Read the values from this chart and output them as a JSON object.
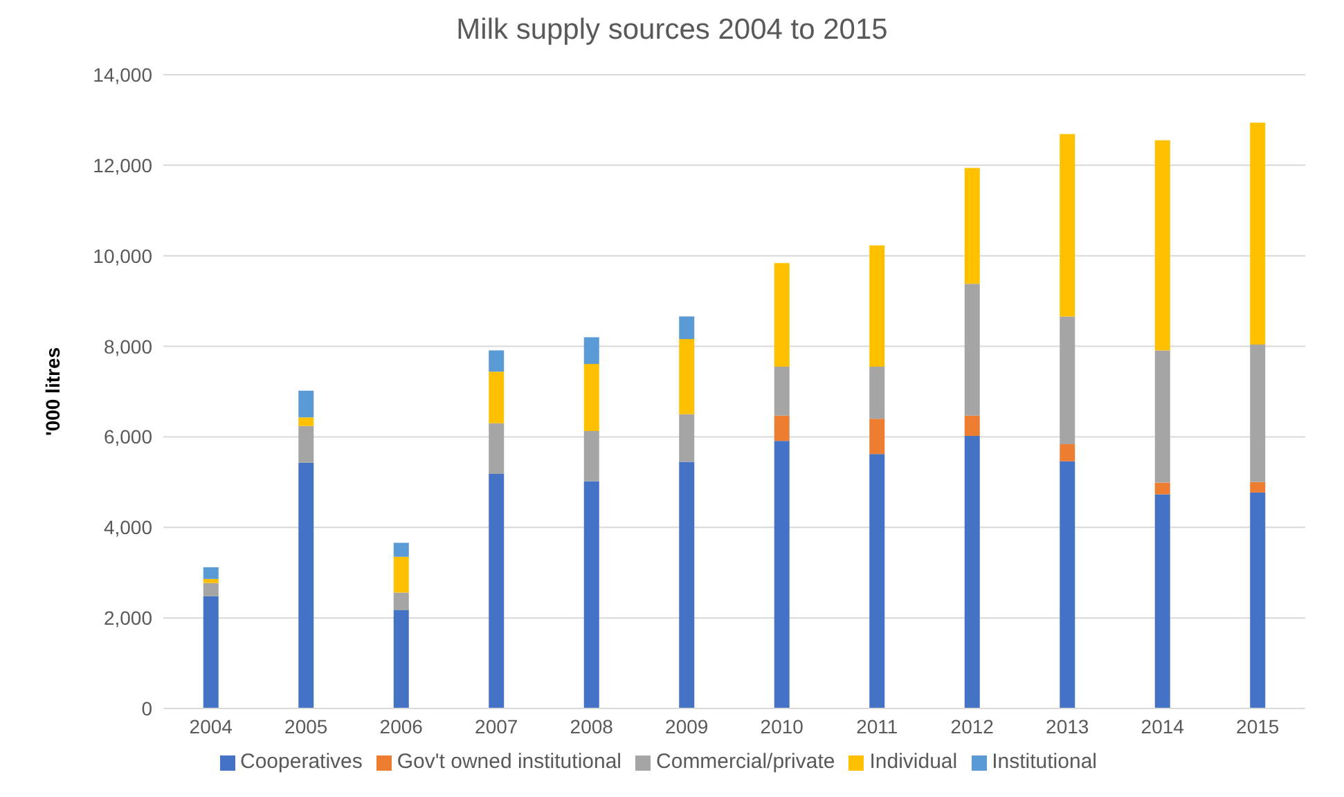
{
  "chart_data": {
    "type": "bar",
    "title": "Milk supply sources 2004 to 2015",
    "ylabel": "'000 litres",
    "categories": [
      "2004",
      "2005",
      "2006",
      "2007",
      "2008",
      "2009",
      "2010",
      "2011",
      "2012",
      "2013",
      "2014",
      "2015"
    ],
    "stacked": true,
    "series": [
      {
        "name": "Cooperatives",
        "color": "#4472c4",
        "values": [
          2480,
          5430,
          2170,
          5180,
          5020,
          5450,
          5910,
          5620,
          6020,
          5460,
          4730,
          4770
        ]
      },
      {
        "name": "Gov't owned institutional",
        "color": "#ed7d31",
        "values": [
          null,
          null,
          null,
          null,
          null,
          null,
          560,
          780,
          450,
          380,
          260,
          230
        ]
      },
      {
        "name": "Commercial/private",
        "color": "#a5a5a5",
        "values": [
          290,
          810,
          390,
          1120,
          1110,
          1050,
          1080,
          1150,
          2910,
          2820,
          2920,
          3040
        ]
      },
      {
        "name": "Individual",
        "color": "#ffc000",
        "values": [
          90,
          190,
          790,
          1140,
          1480,
          1660,
          2290,
          2680,
          2560,
          4030,
          4640,
          4900
        ]
      },
      {
        "name": "Institutional",
        "color": "#5b9bd5",
        "values": [
          260,
          590,
          310,
          470,
          590,
          500,
          null,
          null,
          null,
          null,
          null,
          null
        ]
      }
    ],
    "ylim": [
      0,
      14000
    ],
    "yticks": [
      {
        "value": 0,
        "label": "0"
      },
      {
        "value": 2000,
        "label": "2,000"
      },
      {
        "value": 4000,
        "label": "4,000"
      },
      {
        "value": 6000,
        "label": "6,000"
      },
      {
        "value": 8000,
        "label": "8,000"
      },
      {
        "value": 10000,
        "label": "10,000"
      },
      {
        "value": 12000,
        "label": "12,000"
      },
      {
        "value": 14000,
        "label": "14,000"
      }
    ],
    "grid": "y",
    "legend": "bottom"
  }
}
